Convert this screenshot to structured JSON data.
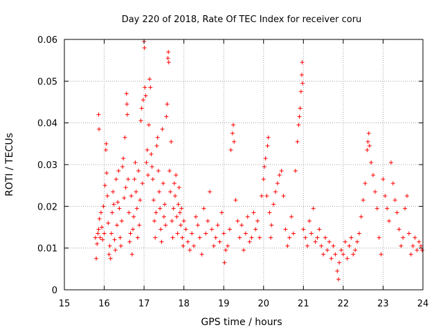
{
  "chart_data": {
    "type": "scatter",
    "title": "Day 220 of 2018, Rate Of TEC Index for receiver coru",
    "xlabel": "GPS time / hours",
    "ylabel": "ROTI / TECUs",
    "xlim": [
      15,
      24
    ],
    "ylim": [
      0,
      0.06
    ],
    "x_ticks": [
      "15",
      "16",
      "17",
      "18",
      "19",
      "20",
      "21",
      "22",
      "23",
      "24"
    ],
    "y_ticks": [
      "0",
      "0.01",
      "0.02",
      "0.03",
      "0.04",
      "0.05",
      "0.06"
    ],
    "grid": true,
    "marker": "plus",
    "colors": {
      "series": "#ff0000",
      "grid": "#a0a0a0",
      "axis": "#000000"
    },
    "series": [
      {
        "points": [
          [
            15.78,
            0.0125
          ],
          [
            15.8,
            0.0075
          ],
          [
            15.82,
            0.011
          ],
          [
            15.84,
            0.0135
          ],
          [
            15.86,
            0.0145
          ],
          [
            15.86,
            0.042
          ],
          [
            15.87,
            0.0385
          ],
          [
            15.88,
            0.017
          ],
          [
            15.9,
            0.0125
          ],
          [
            15.92,
            0.0185
          ],
          [
            15.94,
            0.015
          ],
          [
            15.96,
            0.012
          ],
          [
            15.98,
            0.02
          ],
          [
            16.0,
            0.0135
          ],
          [
            16.02,
            0.025
          ],
          [
            16.04,
            0.0335
          ],
          [
            16.05,
            0.035
          ],
          [
            16.06,
            0.028
          ],
          [
            16.08,
            0.0225
          ],
          [
            16.1,
            0.016
          ],
          [
            16.12,
            0.0085
          ],
          [
            16.14,
            0.0105
          ],
          [
            16.16,
            0.0075
          ],
          [
            16.18,
            0.0135
          ],
          [
            16.2,
            0.0185
          ],
          [
            16.22,
            0.0235
          ],
          [
            16.24,
            0.0205
          ],
          [
            16.26,
            0.012
          ],
          [
            16.28,
            0.0095
          ],
          [
            16.3,
            0.0265
          ],
          [
            16.32,
            0.0155
          ],
          [
            16.34,
            0.021
          ],
          [
            16.36,
            0.0285
          ],
          [
            16.38,
            0.0195
          ],
          [
            16.4,
            0.0125
          ],
          [
            16.42,
            0.0105
          ],
          [
            16.44,
            0.0165
          ],
          [
            16.46,
            0.0295
          ],
          [
            16.48,
            0.0315
          ],
          [
            16.5,
            0.022
          ],
          [
            16.52,
            0.0365
          ],
          [
            16.54,
            0.0245
          ],
          [
            16.56,
            0.047
          ],
          [
            16.57,
            0.0445
          ],
          [
            16.58,
            0.042
          ],
          [
            16.6,
            0.0265
          ],
          [
            16.62,
            0.0185
          ],
          [
            16.64,
            0.0115
          ],
          [
            16.66,
            0.0135
          ],
          [
            16.68,
            0.0225
          ],
          [
            16.7,
            0.0085
          ],
          [
            16.72,
            0.0145
          ],
          [
            16.74,
            0.0175
          ],
          [
            16.76,
            0.0265
          ],
          [
            16.78,
            0.0305
          ],
          [
            16.8,
            0.0235
          ],
          [
            16.82,
            0.0195
          ],
          [
            16.84,
            0.0125
          ],
          [
            16.86,
            0.0285
          ],
          [
            16.88,
            0.0155
          ],
          [
            16.9,
            0.0215
          ],
          [
            16.92,
            0.0405
          ],
          [
            16.94,
            0.0435
          ],
          [
            16.96,
            0.0255
          ],
          [
            16.98,
            0.0455
          ],
          [
            17.0,
            0.0595
          ],
          [
            17.01,
            0.058
          ],
          [
            17.02,
            0.0485
          ],
          [
            17.04,
            0.0465
          ],
          [
            17.06,
            0.0305
          ],
          [
            17.08,
            0.0335
          ],
          [
            17.1,
            0.0275
          ],
          [
            17.12,
            0.0395
          ],
          [
            17.14,
            0.0505
          ],
          [
            17.16,
            0.0485
          ],
          [
            17.18,
            0.0325
          ],
          [
            17.2,
            0.0295
          ],
          [
            17.22,
            0.0265
          ],
          [
            17.24,
            0.0215
          ],
          [
            17.26,
            0.0165
          ],
          [
            17.28,
            0.0125
          ],
          [
            17.3,
            0.0185
          ],
          [
            17.32,
            0.0345
          ],
          [
            17.34,
            0.0365
          ],
          [
            17.36,
            0.0285
          ],
          [
            17.38,
            0.0235
          ],
          [
            17.4,
            0.0195
          ],
          [
            17.42,
            0.0145
          ],
          [
            17.44,
            0.0115
          ],
          [
            17.46,
            0.0385
          ],
          [
            17.48,
            0.0255
          ],
          [
            17.5,
            0.0175
          ],
          [
            17.52,
            0.0205
          ],
          [
            17.54,
            0.0155
          ],
          [
            17.56,
            0.0415
          ],
          [
            17.58,
            0.0445
          ],
          [
            17.6,
            0.0555
          ],
          [
            17.61,
            0.057
          ],
          [
            17.62,
            0.0545
          ],
          [
            17.64,
            0.0285
          ],
          [
            17.66,
            0.0235
          ],
          [
            17.68,
            0.0355
          ],
          [
            17.7,
            0.0165
          ],
          [
            17.72,
            0.0125
          ],
          [
            17.74,
            0.0195
          ],
          [
            17.76,
            0.0255
          ],
          [
            17.78,
            0.0225
          ],
          [
            17.8,
            0.0275
          ],
          [
            17.82,
            0.0175
          ],
          [
            17.84,
            0.0135
          ],
          [
            17.86,
            0.0205
          ],
          [
            17.88,
            0.0245
          ],
          [
            17.9,
            0.0185
          ],
          [
            17.92,
            0.0155
          ],
          [
            17.94,
            0.0195
          ],
          [
            17.96,
            0.0125
          ],
          [
            17.98,
            0.0105
          ],
          [
            18.0,
            0.0165
          ],
          [
            18.05,
            0.0145
          ],
          [
            18.1,
            0.0115
          ],
          [
            18.15,
            0.0095
          ],
          [
            18.2,
            0.0135
          ],
          [
            18.25,
            0.0105
          ],
          [
            18.3,
            0.0175
          ],
          [
            18.35,
            0.0155
          ],
          [
            18.4,
            0.0125
          ],
          [
            18.45,
            0.0085
          ],
          [
            18.5,
            0.0195
          ],
          [
            18.55,
            0.0135
          ],
          [
            18.6,
            0.0165
          ],
          [
            18.65,
            0.0235
          ],
          [
            18.7,
            0.0145
          ],
          [
            18.75,
            0.0105
          ],
          [
            18.8,
            0.0125
          ],
          [
            18.85,
            0.0155
          ],
          [
            18.9,
            0.0115
          ],
          [
            18.95,
            0.0185
          ],
          [
            19.0,
            0.0135
          ],
          [
            19.02,
            0.0065
          ],
          [
            19.05,
            0.0095
          ],
          [
            19.1,
            0.0105
          ],
          [
            19.15,
            0.0145
          ],
          [
            19.18,
            0.0335
          ],
          [
            19.22,
            0.0375
          ],
          [
            19.24,
            0.0395
          ],
          [
            19.26,
            0.0355
          ],
          [
            19.3,
            0.0215
          ],
          [
            19.35,
            0.0165
          ],
          [
            19.4,
            0.0125
          ],
          [
            19.45,
            0.0155
          ],
          [
            19.5,
            0.0095
          ],
          [
            19.55,
            0.0135
          ],
          [
            19.6,
            0.0175
          ],
          [
            19.65,
            0.0115
          ],
          [
            19.7,
            0.0125
          ],
          [
            19.75,
            0.0185
          ],
          [
            19.8,
            0.0145
          ],
          [
            19.85,
            0.0165
          ],
          [
            19.9,
            0.0125
          ],
          [
            19.95,
            0.0225
          ],
          [
            20.0,
            0.0265
          ],
          [
            20.02,
            0.0295
          ],
          [
            20.05,
            0.0315
          ],
          [
            20.08,
            0.0225
          ],
          [
            20.1,
            0.0345
          ],
          [
            20.12,
            0.0365
          ],
          [
            20.15,
            0.0185
          ],
          [
            20.18,
            0.0125
          ],
          [
            20.2,
            0.0155
          ],
          [
            20.25,
            0.0205
          ],
          [
            20.3,
            0.0235
          ],
          [
            20.35,
            0.0255
          ],
          [
            20.4,
            0.0275
          ],
          [
            20.45,
            0.0285
          ],
          [
            20.5,
            0.0225
          ],
          [
            20.55,
            0.0145
          ],
          [
            20.6,
            0.0105
          ],
          [
            20.65,
            0.0125
          ],
          [
            20.7,
            0.0175
          ],
          [
            20.75,
            0.0135
          ],
          [
            20.8,
            0.0285
          ],
          [
            20.85,
            0.0355
          ],
          [
            20.88,
            0.0395
          ],
          [
            20.9,
            0.0415
          ],
          [
            20.92,
            0.0435
          ],
          [
            20.94,
            0.0475
          ],
          [
            20.96,
            0.0515
          ],
          [
            20.97,
            0.0545
          ],
          [
            20.98,
            0.0495
          ],
          [
            21.0,
            0.0145
          ],
          [
            21.05,
            0.0125
          ],
          [
            21.1,
            0.0105
          ],
          [
            21.15,
            0.0165
          ],
          [
            21.2,
            0.0135
          ],
          [
            21.25,
            0.0195
          ],
          [
            21.3,
            0.0115
          ],
          [
            21.35,
            0.0125
          ],
          [
            21.4,
            0.0145
          ],
          [
            21.45,
            0.0105
          ],
          [
            21.5,
            0.0085
          ],
          [
            21.55,
            0.0125
          ],
          [
            21.6,
            0.0095
          ],
          [
            21.65,
            0.0115
          ],
          [
            21.7,
            0.0075
          ],
          [
            21.75,
            0.0105
          ],
          [
            21.8,
            0.0085
          ],
          [
            21.85,
            0.0045
          ],
          [
            21.88,
            0.0025
          ],
          [
            21.9,
            0.0065
          ],
          [
            21.95,
            0.0095
          ],
          [
            22.0,
            0.0085
          ],
          [
            22.05,
            0.0115
          ],
          [
            22.1,
            0.0075
          ],
          [
            22.15,
            0.0105
          ],
          [
            22.2,
            0.0125
          ],
          [
            22.25,
            0.0085
          ],
          [
            22.3,
            0.0095
          ],
          [
            22.35,
            0.0115
          ],
          [
            22.4,
            0.0135
          ],
          [
            22.45,
            0.0175
          ],
          [
            22.5,
            0.0215
          ],
          [
            22.55,
            0.0255
          ],
          [
            22.6,
            0.0335
          ],
          [
            22.62,
            0.0355
          ],
          [
            22.64,
            0.0375
          ],
          [
            22.66,
            0.0345
          ],
          [
            22.7,
            0.0305
          ],
          [
            22.75,
            0.0275
          ],
          [
            22.8,
            0.0235
          ],
          [
            22.85,
            0.0195
          ],
          [
            22.9,
            0.0125
          ],
          [
            22.95,
            0.0085
          ],
          [
            23.0,
            0.0265
          ],
          [
            23.05,
            0.0225
          ],
          [
            23.1,
            0.0195
          ],
          [
            23.15,
            0.0165
          ],
          [
            23.2,
            0.0305
          ],
          [
            23.25,
            0.0255
          ],
          [
            23.3,
            0.0215
          ],
          [
            23.35,
            0.0185
          ],
          [
            23.4,
            0.0145
          ],
          [
            23.45,
            0.0105
          ],
          [
            23.5,
            0.0125
          ],
          [
            23.55,
            0.0195
          ],
          [
            23.6,
            0.0225
          ],
          [
            23.65,
            0.0135
          ],
          [
            23.7,
            0.0085
          ],
          [
            23.75,
            0.0105
          ],
          [
            23.8,
            0.0125
          ],
          [
            23.85,
            0.0095
          ],
          [
            23.9,
            0.0115
          ],
          [
            23.95,
            0.0105
          ],
          [
            23.98,
            0.0095
          ]
        ]
      }
    ]
  }
}
